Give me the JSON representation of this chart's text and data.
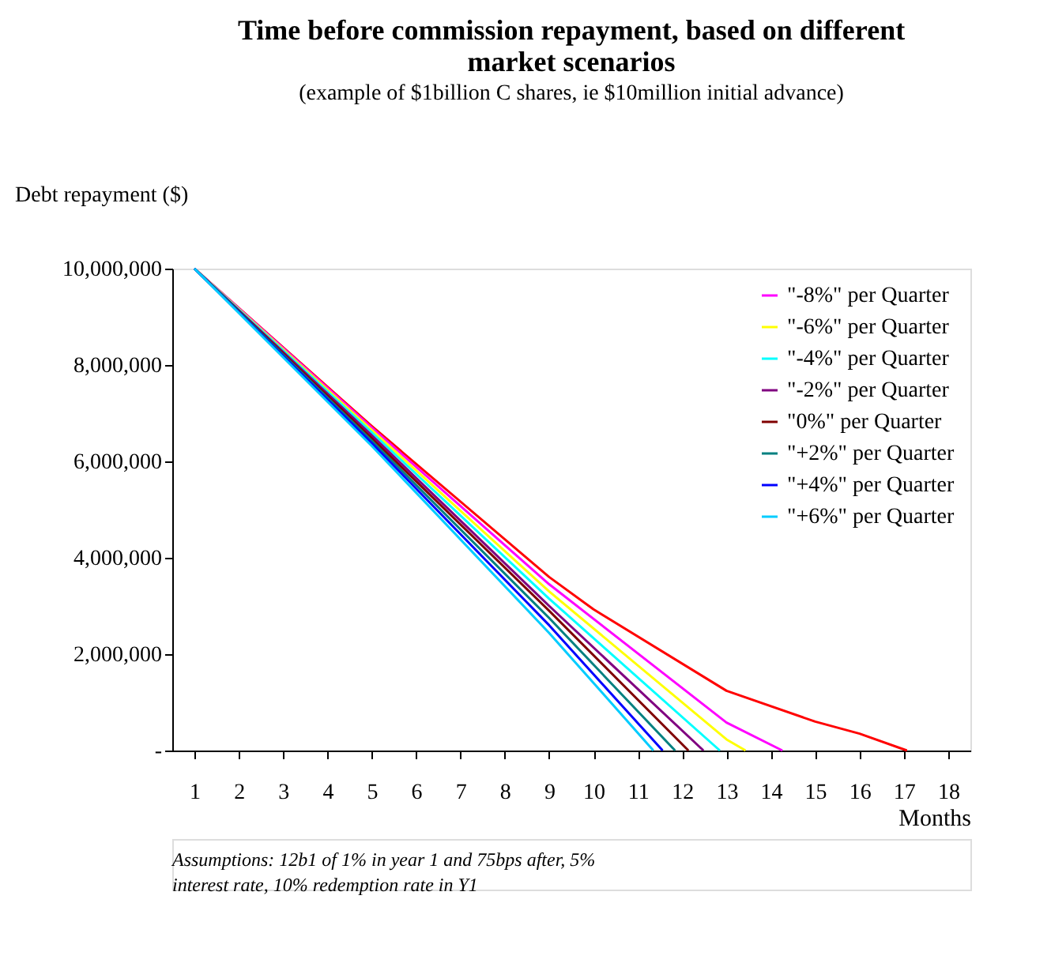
{
  "chart_data": {
    "type": "line",
    "title": [
      "Time before commission repayment, based on different",
      "market scenarios"
    ],
    "subtitle": "(example of $1billion C shares, ie $10million initial advance)",
    "ylabel": "Debt repayment ($)",
    "xlabel": "Months",
    "xlim": [
      0.5,
      18.5
    ],
    "xticks": [
      1,
      2,
      3,
      4,
      5,
      6,
      7,
      8,
      9,
      10,
      11,
      12,
      13,
      14,
      15,
      16,
      17,
      18
    ],
    "ylim": [
      0,
      10000000
    ],
    "yticks": [
      {
        "value": 0,
        "label": "-"
      },
      {
        "value": 2000000,
        "label": "2,000,000"
      },
      {
        "value": 4000000,
        "label": "4,000,000"
      },
      {
        "value": 6000000,
        "label": "6,000,000"
      },
      {
        "value": 8000000,
        "label": "8,000,000"
      },
      {
        "value": 10000000,
        "label": "10,000,000"
      }
    ],
    "grid": false,
    "legend": "top right",
    "marker": "none",
    "line_style": "solid",
    "series": [
      {
        "color": "#ff0000",
        "x": [
          1,
          5,
          9,
          10,
          13,
          15,
          16,
          17.07
        ],
        "values": [
          10000000,
          6730000,
          3600000,
          2930000,
          1240000,
          600000,
          350000,
          0
        ]
      },
      {
        "name": "\"-8%\" per Quarter",
        "color": "#ff00ff",
        "x": [
          1,
          5,
          9,
          13,
          14.26
        ],
        "values": [
          10000000,
          6700000,
          3450000,
          580000,
          0
        ]
      },
      {
        "name": "\"-6%\" per Quarter",
        "color": "#ffff00",
        "x": [
          1,
          5,
          9,
          13,
          13.43
        ],
        "values": [
          10000000,
          6650000,
          3300000,
          230000,
          0
        ]
      },
      {
        "name": "\"-4%\" per Quarter",
        "color": "#00ffff",
        "x": [
          1,
          5,
          9,
          12.85
        ],
        "values": [
          10000000,
          6600000,
          3150000,
          0
        ]
      },
      {
        "name": "\"-2%\" per Quarter",
        "color": "#800080",
        "x": [
          1,
          5,
          9,
          12.48
        ],
        "values": [
          10000000,
          6540000,
          3000000,
          0
        ]
      },
      {
        "name": "\"0%\" per Quarter",
        "color": "#800000",
        "x": [
          1,
          5,
          9,
          12.14
        ],
        "values": [
          10000000,
          6480000,
          2900000,
          0
        ]
      },
      {
        "name": "\"+2%\" per Quarter",
        "color": "#008080",
        "x": [
          1,
          5,
          9,
          11.84
        ],
        "values": [
          10000000,
          6430000,
          2750000,
          0
        ]
      },
      {
        "name": "\"+4%\" per Quarter",
        "color": "#0000ff",
        "x": [
          1,
          5,
          9,
          11.56
        ],
        "values": [
          10000000,
          6380000,
          2600000,
          0
        ]
      },
      {
        "name": "\"+6%\" per Quarter",
        "color": "#00ccff",
        "x": [
          1,
          5,
          9,
          11.35
        ],
        "values": [
          10000000,
          6320000,
          2440000,
          0
        ]
      }
    ],
    "annotations": [
      "Assumptions:  12b1 of 1% in year 1 and 75bps after, 5%",
      "interest rate, 10% redemption rate in Y1"
    ]
  }
}
